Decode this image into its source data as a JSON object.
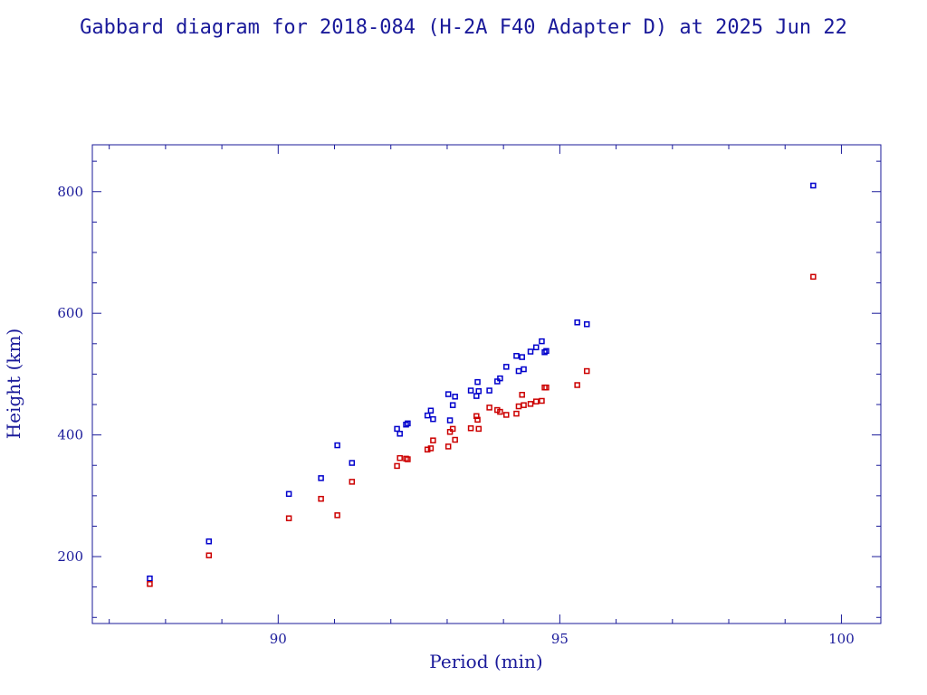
{
  "colors": {
    "frame": "#1a1a9a",
    "text": "#1a1a9a",
    "apogee": "#0000cc",
    "perigee": "#cc0000"
  },
  "chart_data": {
    "type": "scatter",
    "title": "Gabbard diagram for 2018-084 (H-2A F40 Adapter D) at 2025 Jun 22",
    "xlabel": "Period (min)",
    "ylabel": "Height (km)",
    "xlim": [
      86.7,
      100.7
    ],
    "ylim": [
      90,
      877
    ],
    "xticks": [
      90,
      95,
      100
    ],
    "xtick_labels": [
      "90",
      "95",
      "100"
    ],
    "xminor_step": 1,
    "yticks": [
      200,
      400,
      600,
      800
    ],
    "ytick_labels": [
      "200",
      "400",
      "600",
      "800"
    ],
    "yminor_step": 50,
    "grid": false,
    "legend": "none",
    "x": [
      87.72,
      88.77,
      90.19,
      90.76,
      91.05,
      91.31,
      92.11,
      92.16,
      92.27,
      92.3,
      92.65,
      92.71,
      92.75,
      93.02,
      93.05,
      93.1,
      93.14,
      93.42,
      93.52,
      93.54,
      93.56,
      93.75,
      93.89,
      93.94,
      94.05,
      94.23,
      94.27,
      94.33,
      94.36,
      94.48,
      94.58,
      94.68,
      94.73,
      94.76,
      95.31,
      95.48,
      99.5
    ],
    "series": [
      {
        "values": [
          164,
          225,
          303,
          329,
          383,
          354,
          410,
          402,
          417,
          419,
          432,
          440,
          426,
          467,
          424,
          449,
          463,
          473,
          464,
          487,
          472,
          473,
          488,
          493,
          512,
          530,
          505,
          528,
          508,
          537,
          544,
          554,
          536,
          538,
          585,
          582,
          810
        ]
      },
      {
        "values": [
          155,
          202,
          263,
          295,
          268,
          323,
          349,
          362,
          361,
          360,
          376,
          378,
          391,
          381,
          405,
          410,
          392,
          411,
          431,
          425,
          410,
          445,
          441,
          438,
          433,
          435,
          447,
          466,
          449,
          451,
          455,
          456,
          478,
          478,
          482,
          505,
          660
        ]
      }
    ]
  }
}
